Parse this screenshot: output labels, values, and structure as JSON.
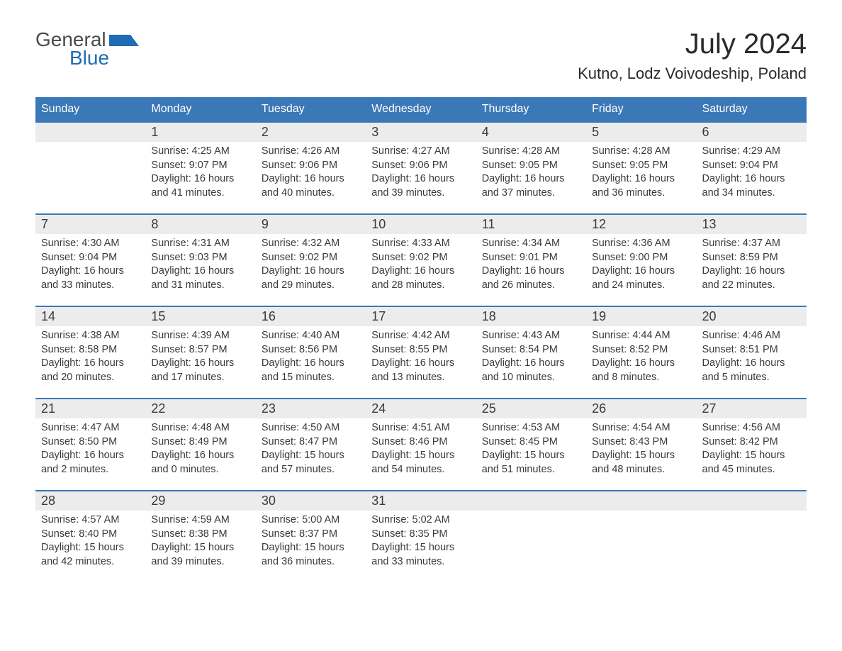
{
  "logo": {
    "top": "General",
    "bottom": "Blue"
  },
  "title": {
    "month": "July 2024",
    "location": "Kutno, Lodz Voivodeship, Poland"
  },
  "headers": [
    "Sunday",
    "Monday",
    "Tuesday",
    "Wednesday",
    "Thursday",
    "Friday",
    "Saturday"
  ],
  "colors": {
    "header_bg": "#3b78b8",
    "header_text": "#ffffff",
    "daynum_bg": "#ececec",
    "border_top": "#3b78b8",
    "text": "#3a3a3a",
    "logo_top": "#4a4a4a",
    "logo_bottom": "#1f6db5",
    "bg": "#ffffff"
  },
  "fonts": {
    "title_month_size": 40,
    "title_location_size": 22,
    "header_size": 16,
    "daynum_size": 18,
    "content_size": 14.5,
    "logo_size": 28
  },
  "weeks": [
    [
      {
        "num": "",
        "lines": []
      },
      {
        "num": "1",
        "lines": [
          "Sunrise: 4:25 AM",
          "Sunset: 9:07 PM",
          "Daylight: 16 hours and 41 minutes."
        ]
      },
      {
        "num": "2",
        "lines": [
          "Sunrise: 4:26 AM",
          "Sunset: 9:06 PM",
          "Daylight: 16 hours and 40 minutes."
        ]
      },
      {
        "num": "3",
        "lines": [
          "Sunrise: 4:27 AM",
          "Sunset: 9:06 PM",
          "Daylight: 16 hours and 39 minutes."
        ]
      },
      {
        "num": "4",
        "lines": [
          "Sunrise: 4:28 AM",
          "Sunset: 9:05 PM",
          "Daylight: 16 hours and 37 minutes."
        ]
      },
      {
        "num": "5",
        "lines": [
          "Sunrise: 4:28 AM",
          "Sunset: 9:05 PM",
          "Daylight: 16 hours and 36 minutes."
        ]
      },
      {
        "num": "6",
        "lines": [
          "Sunrise: 4:29 AM",
          "Sunset: 9:04 PM",
          "Daylight: 16 hours and 34 minutes."
        ]
      }
    ],
    [
      {
        "num": "7",
        "lines": [
          "Sunrise: 4:30 AM",
          "Sunset: 9:04 PM",
          "Daylight: 16 hours and 33 minutes."
        ]
      },
      {
        "num": "8",
        "lines": [
          "Sunrise: 4:31 AM",
          "Sunset: 9:03 PM",
          "Daylight: 16 hours and 31 minutes."
        ]
      },
      {
        "num": "9",
        "lines": [
          "Sunrise: 4:32 AM",
          "Sunset: 9:02 PM",
          "Daylight: 16 hours and 29 minutes."
        ]
      },
      {
        "num": "10",
        "lines": [
          "Sunrise: 4:33 AM",
          "Sunset: 9:02 PM",
          "Daylight: 16 hours and 28 minutes."
        ]
      },
      {
        "num": "11",
        "lines": [
          "Sunrise: 4:34 AM",
          "Sunset: 9:01 PM",
          "Daylight: 16 hours and 26 minutes."
        ]
      },
      {
        "num": "12",
        "lines": [
          "Sunrise: 4:36 AM",
          "Sunset: 9:00 PM",
          "Daylight: 16 hours and 24 minutes."
        ]
      },
      {
        "num": "13",
        "lines": [
          "Sunrise: 4:37 AM",
          "Sunset: 8:59 PM",
          "Daylight: 16 hours and 22 minutes."
        ]
      }
    ],
    [
      {
        "num": "14",
        "lines": [
          "Sunrise: 4:38 AM",
          "Sunset: 8:58 PM",
          "Daylight: 16 hours and 20 minutes."
        ]
      },
      {
        "num": "15",
        "lines": [
          "Sunrise: 4:39 AM",
          "Sunset: 8:57 PM",
          "Daylight: 16 hours and 17 minutes."
        ]
      },
      {
        "num": "16",
        "lines": [
          "Sunrise: 4:40 AM",
          "Sunset: 8:56 PM",
          "Daylight: 16 hours and 15 minutes."
        ]
      },
      {
        "num": "17",
        "lines": [
          "Sunrise: 4:42 AM",
          "Sunset: 8:55 PM",
          "Daylight: 16 hours and 13 minutes."
        ]
      },
      {
        "num": "18",
        "lines": [
          "Sunrise: 4:43 AM",
          "Sunset: 8:54 PM",
          "Daylight: 16 hours and 10 minutes."
        ]
      },
      {
        "num": "19",
        "lines": [
          "Sunrise: 4:44 AM",
          "Sunset: 8:52 PM",
          "Daylight: 16 hours and 8 minutes."
        ]
      },
      {
        "num": "20",
        "lines": [
          "Sunrise: 4:46 AM",
          "Sunset: 8:51 PM",
          "Daylight: 16 hours and 5 minutes."
        ]
      }
    ],
    [
      {
        "num": "21",
        "lines": [
          "Sunrise: 4:47 AM",
          "Sunset: 8:50 PM",
          "Daylight: 16 hours and 2 minutes."
        ]
      },
      {
        "num": "22",
        "lines": [
          "Sunrise: 4:48 AM",
          "Sunset: 8:49 PM",
          "Daylight: 16 hours and 0 minutes."
        ]
      },
      {
        "num": "23",
        "lines": [
          "Sunrise: 4:50 AM",
          "Sunset: 8:47 PM",
          "Daylight: 15 hours and 57 minutes."
        ]
      },
      {
        "num": "24",
        "lines": [
          "Sunrise: 4:51 AM",
          "Sunset: 8:46 PM",
          "Daylight: 15 hours and 54 minutes."
        ]
      },
      {
        "num": "25",
        "lines": [
          "Sunrise: 4:53 AM",
          "Sunset: 8:45 PM",
          "Daylight: 15 hours and 51 minutes."
        ]
      },
      {
        "num": "26",
        "lines": [
          "Sunrise: 4:54 AM",
          "Sunset: 8:43 PM",
          "Daylight: 15 hours and 48 minutes."
        ]
      },
      {
        "num": "27",
        "lines": [
          "Sunrise: 4:56 AM",
          "Sunset: 8:42 PM",
          "Daylight: 15 hours and 45 minutes."
        ]
      }
    ],
    [
      {
        "num": "28",
        "lines": [
          "Sunrise: 4:57 AM",
          "Sunset: 8:40 PM",
          "Daylight: 15 hours and 42 minutes."
        ]
      },
      {
        "num": "29",
        "lines": [
          "Sunrise: 4:59 AM",
          "Sunset: 8:38 PM",
          "Daylight: 15 hours and 39 minutes."
        ]
      },
      {
        "num": "30",
        "lines": [
          "Sunrise: 5:00 AM",
          "Sunset: 8:37 PM",
          "Daylight: 15 hours and 36 minutes."
        ]
      },
      {
        "num": "31",
        "lines": [
          "Sunrise: 5:02 AM",
          "Sunset: 8:35 PM",
          "Daylight: 15 hours and 33 minutes."
        ]
      },
      {
        "num": "",
        "lines": []
      },
      {
        "num": "",
        "lines": []
      },
      {
        "num": "",
        "lines": []
      }
    ]
  ]
}
